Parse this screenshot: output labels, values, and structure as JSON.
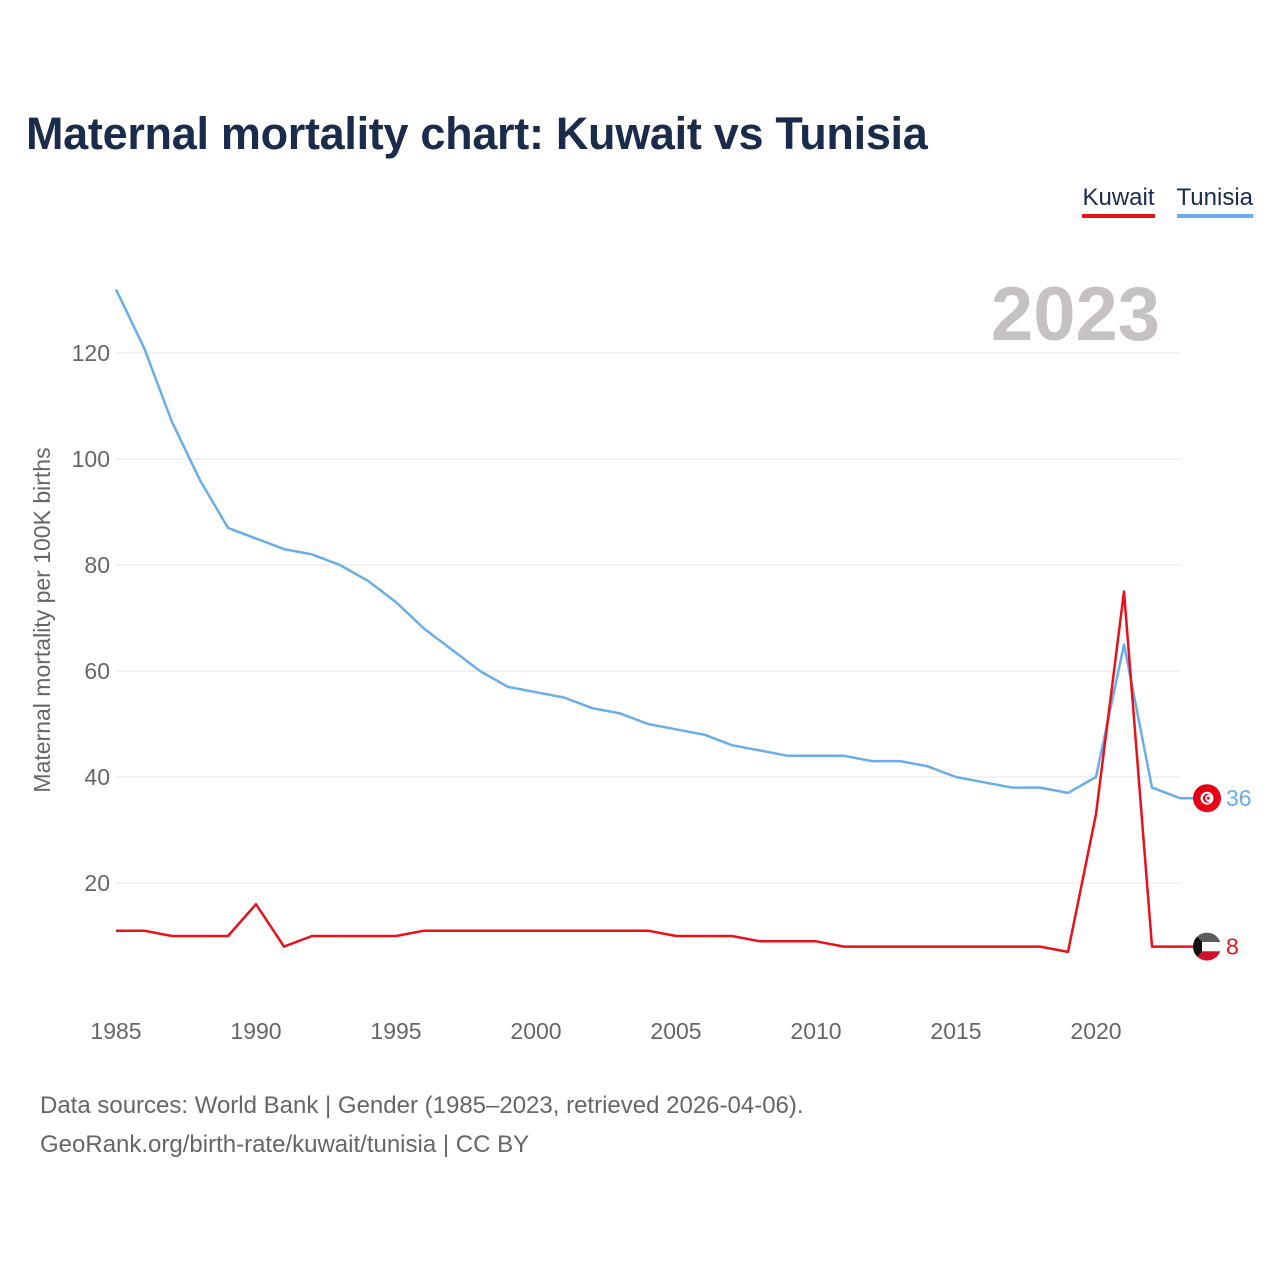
{
  "title": "Maternal mortality chart: Kuwait vs Tunisia",
  "legend": [
    "Kuwait",
    "Tunisia"
  ],
  "colors": {
    "kuwait": "#e8101a",
    "tunisia": "#6aaee8",
    "title": "#1a2b4c",
    "year_watermark": "#c7c2c2",
    "grid": "#e6e6e6"
  },
  "year_label": "2023",
  "footer": {
    "line1": "Data sources: World Bank | Gender (1985–2023, retrieved 2026-04-06).",
    "line2": "GeoRank.org/birth-rate/kuwait/tunisia | CC BY"
  },
  "flags": {
    "kuwait": "kuwait-flag-icon",
    "tunisia": "tunisia-flag-icon"
  },
  "chart_data": {
    "type": "line",
    "title": "Maternal mortality chart: Kuwait vs Tunisia",
    "xlabel": "",
    "ylabel": "Maternal mortality per 100K births",
    "xlim": [
      1985,
      2023
    ],
    "ylim": [
      0,
      135
    ],
    "x_ticks": [
      1985,
      1990,
      1995,
      2000,
      2005,
      2010,
      2015,
      2020
    ],
    "y_ticks": [
      20,
      40,
      60,
      80,
      100,
      120
    ],
    "x": [
      1985,
      1986,
      1987,
      1988,
      1989,
      1990,
      1991,
      1992,
      1993,
      1994,
      1995,
      1996,
      1997,
      1998,
      1999,
      2000,
      2001,
      2002,
      2003,
      2004,
      2005,
      2006,
      2007,
      2008,
      2009,
      2010,
      2011,
      2012,
      2013,
      2014,
      2015,
      2016,
      2017,
      2018,
      2019,
      2020,
      2021,
      2022,
      2023
    ],
    "series": [
      {
        "name": "Kuwait",
        "end_label": "8",
        "values": [
          11,
          11,
          10,
          10,
          10,
          16,
          8,
          10,
          10,
          10,
          10,
          11,
          11,
          11,
          11,
          11,
          11,
          11,
          11,
          11,
          10,
          10,
          10,
          9,
          9,
          9,
          8,
          8,
          8,
          8,
          8,
          8,
          8,
          8,
          7,
          33,
          75,
          8,
          8
        ]
      },
      {
        "name": "Tunisia",
        "end_label": "36",
        "values": [
          132,
          121,
          107,
          96,
          87,
          85,
          83,
          82,
          80,
          77,
          73,
          68,
          64,
          60,
          57,
          56,
          55,
          53,
          52,
          50,
          49,
          48,
          46,
          45,
          44,
          44,
          44,
          43,
          43,
          42,
          40,
          39,
          38,
          38,
          37,
          40,
          65,
          38,
          36
        ]
      }
    ],
    "legend_position": "top-right"
  }
}
